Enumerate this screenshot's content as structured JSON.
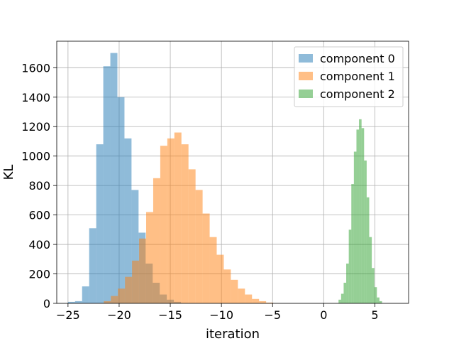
{
  "chart_data": {
    "type": "histogram",
    "title": "",
    "xlabel": "iteration",
    "ylabel": "KL",
    "xlim": [
      -26.1,
      8.3
    ],
    "ylim": [
      0,
      1780
    ],
    "xticks": [
      -25,
      -20,
      -15,
      -10,
      -5,
      0,
      5
    ],
    "yticks": [
      0,
      200,
      400,
      600,
      800,
      1000,
      1200,
      1400,
      1600
    ],
    "grid": true,
    "legend_position": "top-right",
    "bar_alpha": 0.5,
    "series": [
      {
        "name": "component 0",
        "color": "#1f77b4",
        "bin_start": -25.0,
        "bin_width": 0.69,
        "values": [
          10,
          15,
          115,
          510,
          1080,
          1610,
          1700,
          1400,
          1120,
          770,
          480,
          270,
          140,
          60,
          25,
          10
        ]
      },
      {
        "name": "component 1",
        "color": "#ff7f0e",
        "bin_start": -21.5,
        "bin_width": 0.69,
        "values": [
          15,
          50,
          100,
          180,
          290,
          440,
          620,
          850,
          1070,
          1120,
          1160,
          1080,
          910,
          770,
          610,
          450,
          330,
          230,
          160,
          100,
          60,
          30,
          15,
          5
        ]
      },
      {
        "name": "component 2",
        "color": "#2ca02c",
        "bin_start": 1.45,
        "bin_width": 0.25,
        "values": [
          25,
          65,
          140,
          270,
          500,
          810,
          1030,
          1180,
          1250,
          1190,
          970,
          720,
          450,
          240,
          110,
          40,
          15
        ]
      }
    ]
  }
}
